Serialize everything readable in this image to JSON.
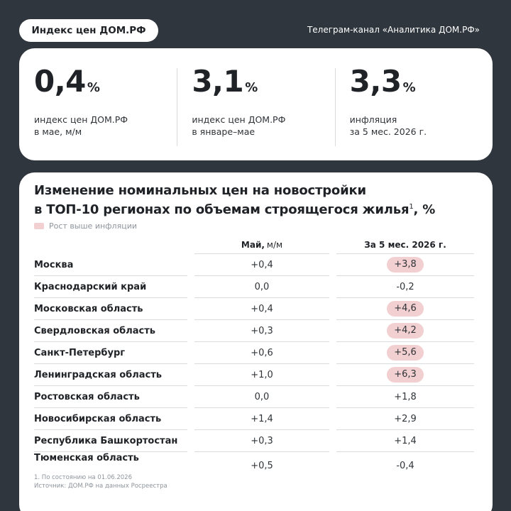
{
  "header": {
    "badge": "Индекс цен ДОМ.РФ",
    "channel": "Телеграм-канал «Аналитика ДОМ.РФ»"
  },
  "stats": [
    {
      "value": "0,4",
      "unit": "%",
      "label_line1": "индекс цен ДОМ.РФ",
      "label_line2": "в мае, м/м"
    },
    {
      "value": "3,1",
      "unit": "%",
      "label_line1": "индекс цен ДОМ.РФ",
      "label_line2": "в январе–мае"
    },
    {
      "value": "3,3",
      "unit": "%",
      "label_line1": "инфляция",
      "label_line2": "за 5 мес. 2026 г."
    }
  ],
  "table": {
    "title_line1": "Изменение номинальных цен на новостройки",
    "title_line2": "в ТОП-10 регионах по объемам строящегося жилья",
    "title_sup": "1",
    "title_suffix": ", %",
    "legend": "Рост выше инфляции",
    "col1_label": "Май,",
    "col1_unit": "м/м",
    "col2_label": "За 5 мес. 2026 г.",
    "highlight_color": "#f2cfd0",
    "rows": [
      {
        "region": "Москва",
        "may": "+0,4",
        "ytd": "+3,8",
        "above_inflation": true
      },
      {
        "region": "Краснодарский край",
        "may": "0,0",
        "ytd": "-0,2",
        "above_inflation": false
      },
      {
        "region": "Московская область",
        "may": "+0,4",
        "ytd": "+4,6",
        "above_inflation": true
      },
      {
        "region": "Свердловская область",
        "may": "+0,3",
        "ytd": "+4,2",
        "above_inflation": true
      },
      {
        "region": "Санкт-Петербург",
        "may": "+0,6",
        "ytd": "+5,6",
        "above_inflation": true
      },
      {
        "region": "Ленинградская область",
        "may": "+1,0",
        "ytd": "+6,3",
        "above_inflation": true
      },
      {
        "region": "Ростовская область",
        "may": "0,0",
        "ytd": "+1,8",
        "above_inflation": false
      },
      {
        "region": "Новосибирская область",
        "may": "+1,4",
        "ytd": "+2,9",
        "above_inflation": false
      },
      {
        "region": "Республика Башкортостан",
        "may": "+0,3",
        "ytd": "+1,4",
        "above_inflation": false
      },
      {
        "region": "Тюменская область",
        "may": "+0,5",
        "ytd": "-0,4",
        "above_inflation": false
      }
    ]
  },
  "footnote": {
    "line1": "1.  По состоянию на 01.06.2026",
    "line2": "Источник: ДОМ.РФ на данных Росреестра"
  }
}
